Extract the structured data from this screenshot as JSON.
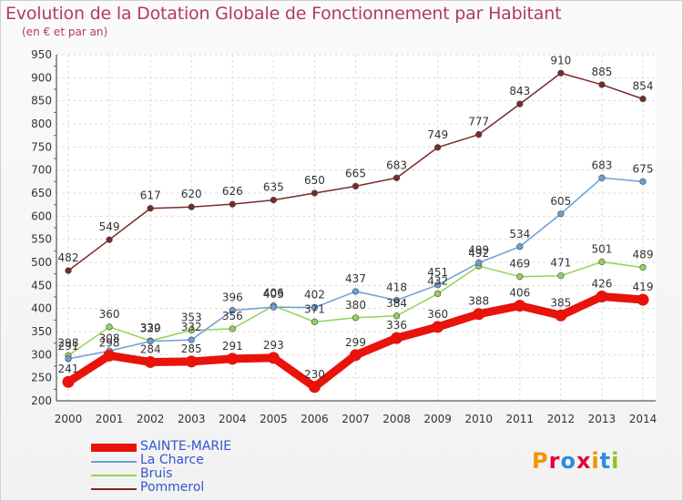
{
  "header": {
    "title": "Evolution de la Dotation Globale de Fonctionnement par Habitant",
    "subtitle": "(en € et par an)"
  },
  "brand": {
    "letters": [
      "P",
      "r",
      "o",
      "x",
      "i",
      "t",
      "i"
    ],
    "colors": [
      "#f39200",
      "#e4003a",
      "#2a8fd6",
      "#e4003a",
      "#f39200",
      "#2a8fd6",
      "#95c11f"
    ]
  },
  "chart_data": {
    "type": "line",
    "title": "Evolution de la Dotation Globale de Fonctionnement par Habitant",
    "subtitle": "(en € et par an)",
    "x": [
      "2000",
      "2001",
      "2002",
      "2003",
      "2004",
      "2005",
      "2006",
      "2007",
      "2008",
      "2009",
      "2010",
      "2011",
      "2012",
      "2013",
      "2014"
    ],
    "ylim": [
      200,
      950
    ],
    "yticks": [
      200,
      250,
      300,
      350,
      400,
      450,
      500,
      550,
      600,
      650,
      700,
      750,
      800,
      850,
      900,
      950
    ],
    "grid": true,
    "legend": "bottom-left",
    "series": [
      {
        "name": "SAINTE-MARIE",
        "color": "#e8130b",
        "width": 9,
        "values": [
          241,
          298,
          284,
          285,
          291,
          293,
          230,
          299,
          336,
          360,
          388,
          406,
          385,
          426,
          419
        ]
      },
      {
        "name": "La Charce",
        "color": "#6b9ed6",
        "width": 1.5,
        "values": [
          291,
          308,
          329,
          332,
          396,
          403,
          402,
          437,
          418,
          451,
          499,
          534,
          605,
          683,
          675
        ]
      },
      {
        "name": "Bruis",
        "color": "#8fd45a",
        "width": 1.5,
        "values": [
          298,
          360,
          330,
          353,
          356,
          406,
          371,
          380,
          384,
          432,
          492,
          469,
          471,
          501,
          489
        ]
      },
      {
        "name": "Pommerol",
        "color": "#7a2a2a",
        "width": 1.5,
        "values": [
          482,
          549,
          617,
          620,
          626,
          635,
          650,
          665,
          683,
          749,
          777,
          843,
          910,
          885,
          854
        ]
      }
    ]
  }
}
